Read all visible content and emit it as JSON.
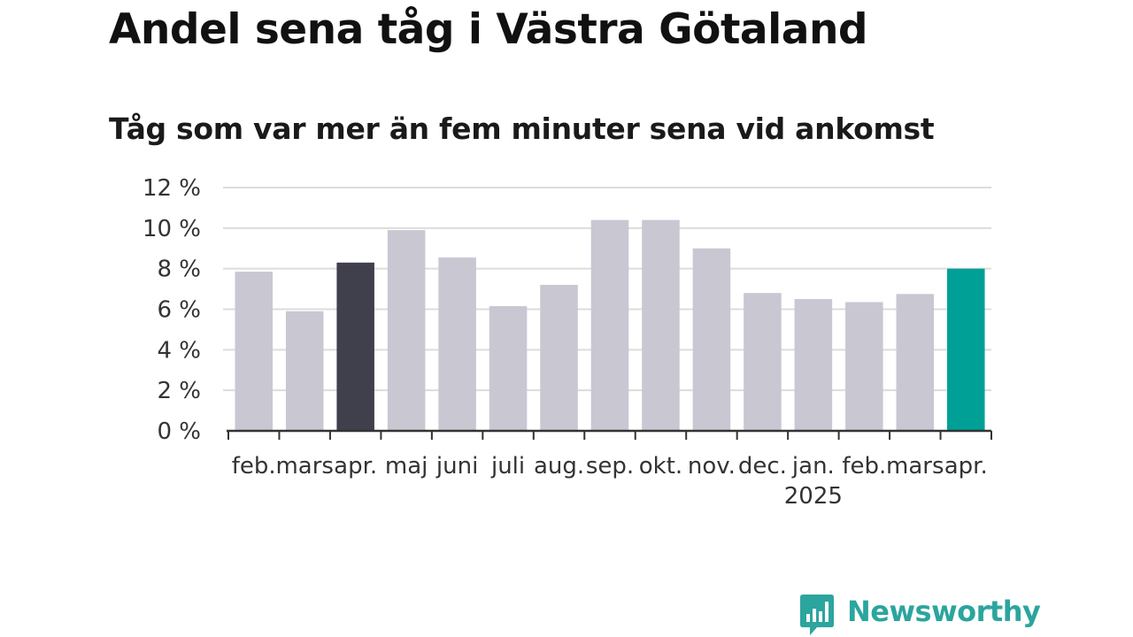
{
  "chart_data": {
    "type": "bar",
    "title": "Andel sena tåg i Västra Götaland",
    "subtitle": "Tåg som var mer än fem minuter sena vid ankomst",
    "categories": [
      "feb.",
      "mars",
      "apr.",
      "maj",
      "juni",
      "juli",
      "aug.",
      "sep.",
      "okt.",
      "nov.",
      "dec.",
      "jan.",
      "feb.",
      "mars",
      "apr."
    ],
    "year_labels": [
      {
        "index": 11,
        "label": "2025"
      }
    ],
    "values": [
      7.85,
      5.9,
      8.3,
      9.9,
      8.55,
      6.15,
      7.2,
      10.4,
      10.4,
      9.0,
      6.8,
      6.5,
      6.35,
      6.75,
      8.0
    ],
    "highlight": [
      2,
      14
    ],
    "colors": {
      "default": "#c8c7d2",
      "previous_year": "#403f4c",
      "current": "#00a096"
    },
    "bar_colors": [
      "default",
      "default",
      "previous_year",
      "default",
      "default",
      "default",
      "default",
      "default",
      "default",
      "default",
      "default",
      "default",
      "default",
      "default",
      "current"
    ],
    "ylim": [
      0,
      12
    ],
    "yticks": [
      0,
      2,
      4,
      6,
      8,
      10,
      12
    ],
    "ytick_suffix": " %",
    "xlabel": "",
    "ylabel": "",
    "grid": true
  },
  "brand": {
    "name": "Newsworthy",
    "color": "#2ba59e",
    "icon": "bar-chart-speech-bubble-icon"
  }
}
